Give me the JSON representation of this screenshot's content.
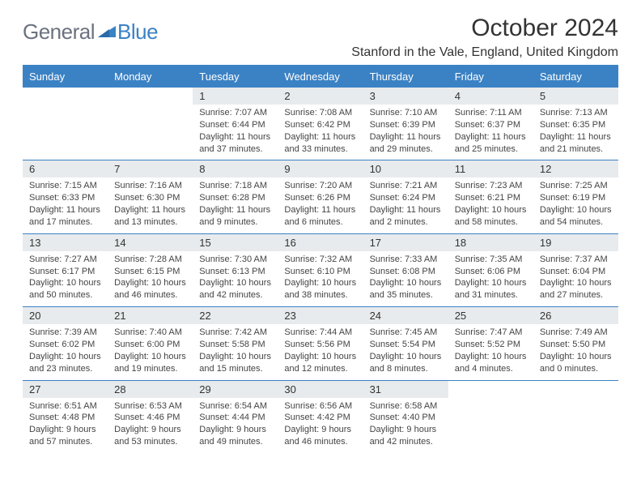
{
  "header": {
    "logo_general": "General",
    "logo_blue": "Blue",
    "month_title": "October 2024",
    "location": "Stanford in the Vale, England, United Kingdom"
  },
  "colors": {
    "header_bg": "#3b82c4",
    "daynum_bg": "#e8ebed",
    "border": "#3b82c4",
    "text": "#333333",
    "logo_gray": "#6b7280"
  },
  "day_headers": [
    "Sunday",
    "Monday",
    "Tuesday",
    "Wednesday",
    "Thursday",
    "Friday",
    "Saturday"
  ],
  "weeks": [
    [
      {
        "n": "",
        "sunrise": "",
        "sunset": "",
        "daylight": ""
      },
      {
        "n": "",
        "sunrise": "",
        "sunset": "",
        "daylight": ""
      },
      {
        "n": "1",
        "sunrise": "Sunrise: 7:07 AM",
        "sunset": "Sunset: 6:44 PM",
        "daylight": "Daylight: 11 hours and 37 minutes."
      },
      {
        "n": "2",
        "sunrise": "Sunrise: 7:08 AM",
        "sunset": "Sunset: 6:42 PM",
        "daylight": "Daylight: 11 hours and 33 minutes."
      },
      {
        "n": "3",
        "sunrise": "Sunrise: 7:10 AM",
        "sunset": "Sunset: 6:39 PM",
        "daylight": "Daylight: 11 hours and 29 minutes."
      },
      {
        "n": "4",
        "sunrise": "Sunrise: 7:11 AM",
        "sunset": "Sunset: 6:37 PM",
        "daylight": "Daylight: 11 hours and 25 minutes."
      },
      {
        "n": "5",
        "sunrise": "Sunrise: 7:13 AM",
        "sunset": "Sunset: 6:35 PM",
        "daylight": "Daylight: 11 hours and 21 minutes."
      }
    ],
    [
      {
        "n": "6",
        "sunrise": "Sunrise: 7:15 AM",
        "sunset": "Sunset: 6:33 PM",
        "daylight": "Daylight: 11 hours and 17 minutes."
      },
      {
        "n": "7",
        "sunrise": "Sunrise: 7:16 AM",
        "sunset": "Sunset: 6:30 PM",
        "daylight": "Daylight: 11 hours and 13 minutes."
      },
      {
        "n": "8",
        "sunrise": "Sunrise: 7:18 AM",
        "sunset": "Sunset: 6:28 PM",
        "daylight": "Daylight: 11 hours and 9 minutes."
      },
      {
        "n": "9",
        "sunrise": "Sunrise: 7:20 AM",
        "sunset": "Sunset: 6:26 PM",
        "daylight": "Daylight: 11 hours and 6 minutes."
      },
      {
        "n": "10",
        "sunrise": "Sunrise: 7:21 AM",
        "sunset": "Sunset: 6:24 PM",
        "daylight": "Daylight: 11 hours and 2 minutes."
      },
      {
        "n": "11",
        "sunrise": "Sunrise: 7:23 AM",
        "sunset": "Sunset: 6:21 PM",
        "daylight": "Daylight: 10 hours and 58 minutes."
      },
      {
        "n": "12",
        "sunrise": "Sunrise: 7:25 AM",
        "sunset": "Sunset: 6:19 PM",
        "daylight": "Daylight: 10 hours and 54 minutes."
      }
    ],
    [
      {
        "n": "13",
        "sunrise": "Sunrise: 7:27 AM",
        "sunset": "Sunset: 6:17 PM",
        "daylight": "Daylight: 10 hours and 50 minutes."
      },
      {
        "n": "14",
        "sunrise": "Sunrise: 7:28 AM",
        "sunset": "Sunset: 6:15 PM",
        "daylight": "Daylight: 10 hours and 46 minutes."
      },
      {
        "n": "15",
        "sunrise": "Sunrise: 7:30 AM",
        "sunset": "Sunset: 6:13 PM",
        "daylight": "Daylight: 10 hours and 42 minutes."
      },
      {
        "n": "16",
        "sunrise": "Sunrise: 7:32 AM",
        "sunset": "Sunset: 6:10 PM",
        "daylight": "Daylight: 10 hours and 38 minutes."
      },
      {
        "n": "17",
        "sunrise": "Sunrise: 7:33 AM",
        "sunset": "Sunset: 6:08 PM",
        "daylight": "Daylight: 10 hours and 35 minutes."
      },
      {
        "n": "18",
        "sunrise": "Sunrise: 7:35 AM",
        "sunset": "Sunset: 6:06 PM",
        "daylight": "Daylight: 10 hours and 31 minutes."
      },
      {
        "n": "19",
        "sunrise": "Sunrise: 7:37 AM",
        "sunset": "Sunset: 6:04 PM",
        "daylight": "Daylight: 10 hours and 27 minutes."
      }
    ],
    [
      {
        "n": "20",
        "sunrise": "Sunrise: 7:39 AM",
        "sunset": "Sunset: 6:02 PM",
        "daylight": "Daylight: 10 hours and 23 minutes."
      },
      {
        "n": "21",
        "sunrise": "Sunrise: 7:40 AM",
        "sunset": "Sunset: 6:00 PM",
        "daylight": "Daylight: 10 hours and 19 minutes."
      },
      {
        "n": "22",
        "sunrise": "Sunrise: 7:42 AM",
        "sunset": "Sunset: 5:58 PM",
        "daylight": "Daylight: 10 hours and 15 minutes."
      },
      {
        "n": "23",
        "sunrise": "Sunrise: 7:44 AM",
        "sunset": "Sunset: 5:56 PM",
        "daylight": "Daylight: 10 hours and 12 minutes."
      },
      {
        "n": "24",
        "sunrise": "Sunrise: 7:45 AM",
        "sunset": "Sunset: 5:54 PM",
        "daylight": "Daylight: 10 hours and 8 minutes."
      },
      {
        "n": "25",
        "sunrise": "Sunrise: 7:47 AM",
        "sunset": "Sunset: 5:52 PM",
        "daylight": "Daylight: 10 hours and 4 minutes."
      },
      {
        "n": "26",
        "sunrise": "Sunrise: 7:49 AM",
        "sunset": "Sunset: 5:50 PM",
        "daylight": "Daylight: 10 hours and 0 minutes."
      }
    ],
    [
      {
        "n": "27",
        "sunrise": "Sunrise: 6:51 AM",
        "sunset": "Sunset: 4:48 PM",
        "daylight": "Daylight: 9 hours and 57 minutes."
      },
      {
        "n": "28",
        "sunrise": "Sunrise: 6:53 AM",
        "sunset": "Sunset: 4:46 PM",
        "daylight": "Daylight: 9 hours and 53 minutes."
      },
      {
        "n": "29",
        "sunrise": "Sunrise: 6:54 AM",
        "sunset": "Sunset: 4:44 PM",
        "daylight": "Daylight: 9 hours and 49 minutes."
      },
      {
        "n": "30",
        "sunrise": "Sunrise: 6:56 AM",
        "sunset": "Sunset: 4:42 PM",
        "daylight": "Daylight: 9 hours and 46 minutes."
      },
      {
        "n": "31",
        "sunrise": "Sunrise: 6:58 AM",
        "sunset": "Sunset: 4:40 PM",
        "daylight": "Daylight: 9 hours and 42 minutes."
      },
      {
        "n": "",
        "sunrise": "",
        "sunset": "",
        "daylight": ""
      },
      {
        "n": "",
        "sunrise": "",
        "sunset": "",
        "daylight": ""
      }
    ]
  ]
}
